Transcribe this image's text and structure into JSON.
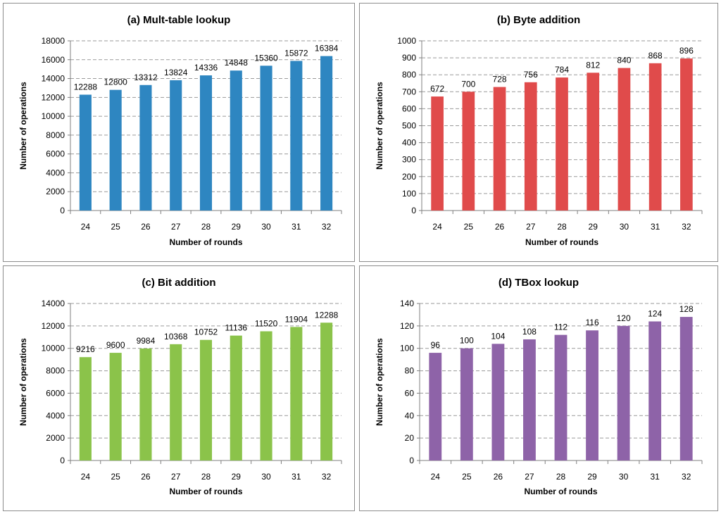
{
  "chart_data": [
    {
      "type": "bar",
      "title": "(a) Mult-table lookup",
      "xlabel": "Number of rounds",
      "ylabel": "Number of operations",
      "categories": [
        "24",
        "25",
        "26",
        "27",
        "28",
        "29",
        "30",
        "31",
        "32"
      ],
      "values": [
        12288,
        12800,
        13312,
        13824,
        14336,
        14848,
        15360,
        15872,
        16384
      ],
      "ylim": [
        0,
        18000
      ],
      "yticks": [
        0,
        2000,
        4000,
        6000,
        8000,
        10000,
        12000,
        14000,
        16000,
        18000
      ],
      "color": "#2e86c1",
      "grid": true,
      "legend": "none"
    },
    {
      "type": "bar",
      "title": "(b) Byte addition",
      "xlabel": "Number of rounds",
      "ylabel": "Number of operations",
      "categories": [
        "24",
        "25",
        "26",
        "27",
        "28",
        "29",
        "30",
        "31",
        "32"
      ],
      "values": [
        672,
        700,
        728,
        756,
        784,
        812,
        840,
        868,
        896
      ],
      "ylim": [
        0,
        1000
      ],
      "yticks": [
        0,
        100,
        200,
        300,
        400,
        500,
        600,
        700,
        800,
        900,
        1000
      ],
      "color": "#e04b4b",
      "grid": true,
      "legend": "none"
    },
    {
      "type": "bar",
      "title": "(c) Bit addition",
      "xlabel": "Number of rounds",
      "ylabel": "Number of operations",
      "categories": [
        "24",
        "25",
        "26",
        "27",
        "28",
        "29",
        "30",
        "31",
        "32"
      ],
      "values": [
        9216,
        9600,
        9984,
        10368,
        10752,
        11136,
        11520,
        11904,
        12288
      ],
      "ylim": [
        0,
        14000
      ],
      "yticks": [
        0,
        2000,
        4000,
        6000,
        8000,
        10000,
        12000,
        14000
      ],
      "color": "#8bc34a",
      "grid": true,
      "legend": "none"
    },
    {
      "type": "bar",
      "title": "(d) TBox lookup",
      "xlabel": "Number of rounds",
      "ylabel": "Number of operations",
      "categories": [
        "24",
        "25",
        "26",
        "27",
        "28",
        "29",
        "30",
        "31",
        "32"
      ],
      "values": [
        96,
        100,
        104,
        108,
        112,
        116,
        120,
        124,
        128
      ],
      "ylim": [
        0,
        140
      ],
      "yticks": [
        0,
        20,
        40,
        60,
        80,
        100,
        120,
        140
      ],
      "color": "#8e63a8",
      "grid": true,
      "legend": "none"
    }
  ]
}
